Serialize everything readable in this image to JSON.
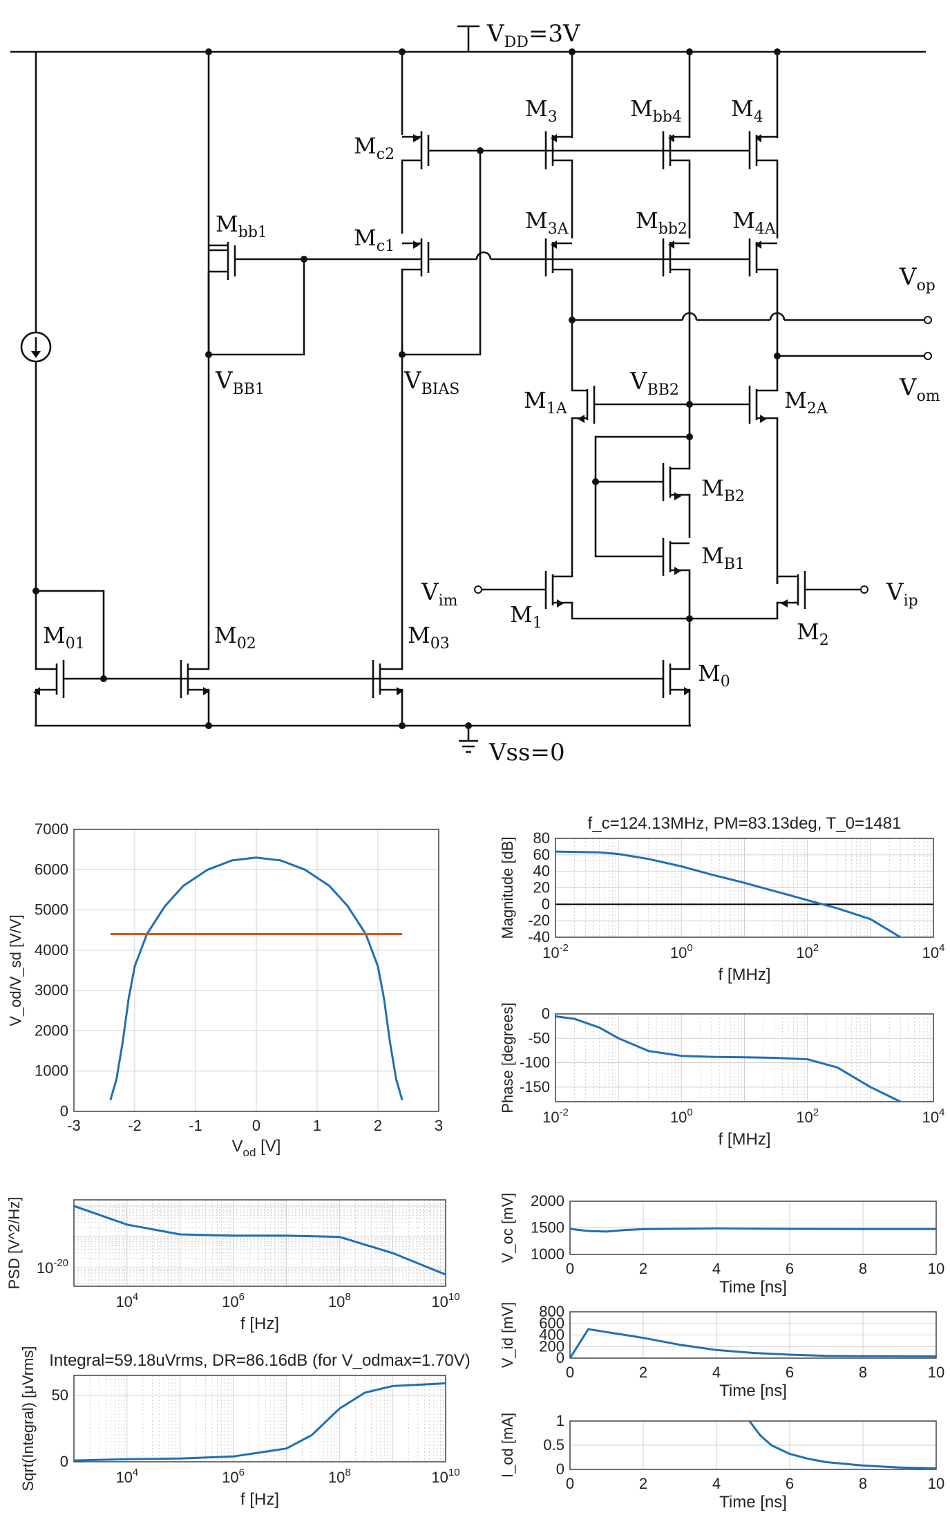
{
  "schematic": {
    "vdd_label": "V",
    "vdd_sub": "DD",
    "vdd_value": "=3V",
    "vss_label": "Vss=0",
    "transistors": [
      {
        "id": "M3",
        "base": "M",
        "sub": "3"
      },
      {
        "id": "Mbb4",
        "base": "M",
        "sub": "bb4"
      },
      {
        "id": "M4",
        "base": "M",
        "sub": "4"
      },
      {
        "id": "Mc2",
        "base": "M",
        "sub": "c2"
      },
      {
        "id": "Mbb1",
        "base": "M",
        "sub": "bb1"
      },
      {
        "id": "Mc1",
        "base": "M",
        "sub": "c1"
      },
      {
        "id": "M3A",
        "base": "M",
        "sub": "3A"
      },
      {
        "id": "Mbb2",
        "base": "M",
        "sub": "bb2"
      },
      {
        "id": "M4A",
        "base": "M",
        "sub": "4A"
      },
      {
        "id": "M1A",
        "base": "M",
        "sub": "1A"
      },
      {
        "id": "M2A",
        "base": "M",
        "sub": "2A"
      },
      {
        "id": "MB2",
        "base": "M",
        "sub": "B2"
      },
      {
        "id": "MB1",
        "base": "M",
        "sub": "B1"
      },
      {
        "id": "M1",
        "base": "M",
        "sub": "1"
      },
      {
        "id": "M2",
        "base": "M",
        "sub": "2"
      },
      {
        "id": "M01",
        "base": "M",
        "sub": "01"
      },
      {
        "id": "M02",
        "base": "M",
        "sub": "02"
      },
      {
        "id": "M03",
        "base": "M",
        "sub": "03"
      },
      {
        "id": "M0",
        "base": "M",
        "sub": "0"
      }
    ],
    "nodes": [
      {
        "id": "VBB1",
        "base": "V",
        "sub": "BB1"
      },
      {
        "id": "VBIAS",
        "base": "V",
        "sub": "BIAS"
      },
      {
        "id": "VBB2",
        "base": "V",
        "sub": "BB2"
      },
      {
        "id": "Vop",
        "base": "V",
        "sub": "op"
      },
      {
        "id": "Vom",
        "base": "V",
        "sub": "om"
      },
      {
        "id": "Vim",
        "base": "V",
        "sub": "im"
      },
      {
        "id": "Vip",
        "base": "V",
        "sub": "ip"
      }
    ]
  },
  "chart_data": [
    {
      "id": "gain",
      "type": "line",
      "xlabel": "V",
      "xlabel_sub": "od",
      "xlabel_unit": " [V]",
      "ylabel": "V_od/V_sd [V/V]",
      "xlim": [
        -3,
        3
      ],
      "ylim": [
        0,
        7000
      ],
      "xticks": [
        "-3",
        "-2",
        "-1",
        "0",
        "1",
        "2",
        "3"
      ],
      "yticks": [
        "0",
        "1000",
        "2000",
        "3000",
        "4000",
        "5000",
        "6000",
        "7000"
      ],
      "grid": true,
      "series": [
        {
          "x": [
            -2.4,
            -2.3,
            -2.2,
            -2.1,
            -2.0,
            -1.8,
            -1.5,
            -1.2,
            -0.8,
            -0.4,
            0,
            0.4,
            0.8,
            1.2,
            1.5,
            1.8,
            2.0,
            2.1,
            2.2,
            2.3,
            2.4
          ],
          "y": [
            280,
            800,
            1700,
            2800,
            3600,
            4400,
            5100,
            5600,
            6000,
            6230,
            6300,
            6230,
            6000,
            5600,
            5100,
            4400,
            3600,
            2800,
            1700,
            800,
            280
          ]
        },
        {
          "x": [
            -2.4,
            2.4
          ],
          "y": [
            4400,
            4400
          ]
        }
      ]
    },
    {
      "id": "magnitude",
      "type": "line",
      "title": "f_c=124.13MHz, PM=83.13deg, T_0=1481",
      "xlabel": "f [MHz]",
      "ylabel": "Magnitude [dB]",
      "xscale": "log",
      "xlim": [
        0.01,
        10000
      ],
      "ylim": [
        -40,
        80
      ],
      "xticks": [
        "10",
        "10",
        "10",
        "10"
      ],
      "xtick_exp": [
        "-2",
        "0",
        "2",
        "4"
      ],
      "yticks": [
        "-40",
        "-20",
        "0",
        "20",
        "40",
        "60",
        "80"
      ],
      "grid": true,
      "series": [
        {
          "x": [
            0.01,
            0.05,
            0.1,
            0.3,
            1,
            3,
            10,
            30,
            100,
            300,
            1000,
            3000
          ],
          "y": [
            64,
            63,
            61,
            55,
            46,
            36,
            26,
            16,
            5,
            -5,
            -18,
            -40
          ]
        }
      ]
    },
    {
      "id": "phase",
      "type": "line",
      "xlabel": "f [MHz]",
      "ylabel": "Phase [degrees]",
      "xscale": "log",
      "xlim": [
        0.01,
        10000
      ],
      "ylim": [
        -180,
        0
      ],
      "xticks": [
        "10",
        "10",
        "10",
        "10"
      ],
      "xtick_exp": [
        "-2",
        "0",
        "2",
        "4"
      ],
      "yticks": [
        "-150",
        "-100",
        "-50",
        "0"
      ],
      "grid": true,
      "series": [
        {
          "x": [
            0.01,
            0.02,
            0.05,
            0.1,
            0.3,
            1,
            3,
            10,
            30,
            100,
            300,
            1000,
            3000
          ],
          "y": [
            -5,
            -10,
            -28,
            -50,
            -76,
            -86,
            -88,
            -89,
            -90,
            -93,
            -110,
            -150,
            -180
          ]
        }
      ]
    },
    {
      "id": "psd",
      "type": "line",
      "xlabel": "f [Hz]",
      "ylabel": "PSD [V^2/Hz]",
      "xscale": "log",
      "yscale": "log",
      "xticks": [
        "10",
        "10",
        "10",
        "10"
      ],
      "xtick_exp": [
        "4",
        "6",
        "8",
        "10"
      ],
      "yticks": [
        "10"
      ],
      "ytick_exp": [
        "-20"
      ],
      "grid": true,
      "series": [
        {
          "x": [
            1000,
            10000,
            100000,
            1000000,
            10000000,
            100000000,
            1000000000,
            10000000000
          ],
          "y": [
            1e-18,
            2.5e-19,
            1.2e-19,
            1.1e-19,
            1.1e-19,
            1e-19,
            3e-20,
            6e-21
          ]
        }
      ]
    },
    {
      "id": "integral",
      "type": "line",
      "title": "Integral=59.18uVrms, DR=86.16dB (for V_odmax=1.70V)",
      "xlabel": "f [Hz]",
      "ylabel": "Sqrt(Integral) [μVrms]",
      "xscale": "log",
      "ylim": [
        0,
        65
      ],
      "xticks": [
        "10",
        "10",
        "10",
        "10"
      ],
      "xtick_exp": [
        "4",
        "6",
        "8",
        "10"
      ],
      "yticks": [
        "0",
        "50"
      ],
      "grid": true,
      "series": [
        {
          "x": [
            1000,
            10000,
            100000,
            1000000,
            10000000,
            30000000,
            100000000,
            300000000,
            1000000000,
            10000000000
          ],
          "y": [
            1,
            2,
            2.5,
            4,
            10,
            20,
            40,
            52,
            57,
            59
          ]
        }
      ]
    },
    {
      "id": "voc",
      "type": "line",
      "xlabel": "Time  [ns]",
      "ylabel": "V_oc [mV]",
      "xlim": [
        0,
        10
      ],
      "ylim": [
        1000,
        2000
      ],
      "xticks": [
        "0",
        "2",
        "4",
        "6",
        "8",
        "10"
      ],
      "yticks": [
        "1000",
        "1500",
        "2000"
      ],
      "grid": true,
      "series": [
        {
          "x": [
            0,
            0.5,
            1,
            1.5,
            2,
            4,
            6,
            8,
            10
          ],
          "y": [
            1480,
            1440,
            1430,
            1460,
            1475,
            1490,
            1480,
            1478,
            1478
          ]
        }
      ]
    },
    {
      "id": "vid",
      "type": "line",
      "xlabel": "Time  [ns]",
      "ylabel": "V_id [mV]",
      "xlim": [
        0,
        10
      ],
      "ylim": [
        0,
        800
      ],
      "xticks": [
        "0",
        "2",
        "4",
        "6",
        "8",
        "10"
      ],
      "yticks": [
        "0",
        "200",
        "400",
        "600",
        "800"
      ],
      "grid": true,
      "series": [
        {
          "x": [
            0,
            0.5,
            1,
            2,
            3,
            4,
            5,
            6,
            7,
            8,
            10
          ],
          "y": [
            0,
            500,
            450,
            350,
            230,
            140,
            90,
            60,
            40,
            35,
            30
          ]
        }
      ]
    },
    {
      "id": "iod",
      "type": "line",
      "xlabel": "Time  [ns]",
      "ylabel": "I_od [mA]",
      "xlim": [
        0,
        10
      ],
      "ylim": [
        0,
        1
      ],
      "xticks": [
        "0",
        "2",
        "4",
        "6",
        "8",
        "10"
      ],
      "yticks": [
        "0",
        "0.5",
        "1"
      ],
      "grid": true,
      "series": [
        {
          "x": [
            4.9,
            5.2,
            5.5,
            6,
            6.5,
            7,
            8,
            9,
            10
          ],
          "y": [
            1,
            0.7,
            0.5,
            0.32,
            0.22,
            0.15,
            0.08,
            0.04,
            0.02
          ]
        }
      ]
    }
  ]
}
